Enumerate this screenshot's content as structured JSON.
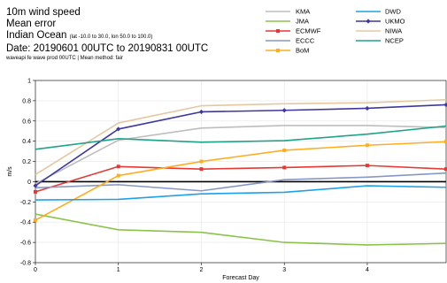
{
  "header": {
    "line1": "10m wind speed",
    "line2": "Mean error",
    "region": "Indian Ocean",
    "region_detail": "(lat -10.0 to 30.0, lon  50.0 to  100.0)",
    "date": "Date: 20190601 00UTC to 20190831 00UTC",
    "meta": "waveapi fe wave prod 00UTC | Mean method: fair"
  },
  "chart_data": {
    "type": "line",
    "title": "10m wind speed",
    "xlabel": "Forecast Day",
    "ylabel": "m/s",
    "xlim": [
      0,
      4.95
    ],
    "ylim": [
      -0.8,
      1.0
    ],
    "xticks": [
      "0",
      "1",
      "2",
      "3",
      "4"
    ],
    "yticks": [
      "1",
      "0.8",
      "0.6",
      "0.4",
      "0.2",
      "0",
      "-0.2",
      "-0.4",
      "-0.6",
      "-0.8"
    ],
    "x": [
      0,
      1,
      2,
      3,
      4,
      4.95
    ],
    "legend_position": "top-right",
    "series": [
      {
        "name": "KMA",
        "color": "#bdbdbd",
        "marker": "none",
        "values": [
          -0.02,
          0.41,
          0.53,
          0.555,
          0.555,
          0.535
        ]
      },
      {
        "name": "JMA",
        "color": "#8bc34a",
        "marker": "none",
        "values": [
          -0.32,
          -0.475,
          -0.5,
          -0.6,
          -0.625,
          -0.61
        ]
      },
      {
        "name": "ECMWF",
        "color": "#e53935",
        "marker": "square",
        "values": [
          -0.1,
          0.15,
          0.125,
          0.14,
          0.16,
          0.125
        ]
      },
      {
        "name": "ECCC",
        "color": "#8797c6",
        "marker": "none",
        "values": [
          -0.06,
          -0.03,
          -0.09,
          0.02,
          0.045,
          0.085
        ]
      },
      {
        "name": "BoM",
        "color": "#ffad1f",
        "marker": "square",
        "values": [
          -0.38,
          0.06,
          0.2,
          0.31,
          0.36,
          0.395
        ]
      },
      {
        "name": "DWD",
        "color": "#1ea1e8",
        "marker": "none",
        "values": [
          -0.18,
          -0.175,
          -0.12,
          -0.105,
          -0.04,
          -0.055
        ]
      },
      {
        "name": "UKMO",
        "color": "#3f37a0",
        "marker": "diamond",
        "values": [
          -0.04,
          0.52,
          0.69,
          0.705,
          0.725,
          0.76
        ]
      },
      {
        "name": "NIWA",
        "color": "#e5c7a0",
        "marker": "none",
        "values": [
          0.07,
          0.58,
          0.75,
          0.77,
          0.78,
          0.81
        ]
      },
      {
        "name": "NCEP",
        "color": "#1fa38a",
        "marker": "none",
        "values": [
          0.32,
          0.425,
          0.39,
          0.405,
          0.47,
          0.55
        ]
      }
    ],
    "zero_line": true,
    "grid": true
  }
}
